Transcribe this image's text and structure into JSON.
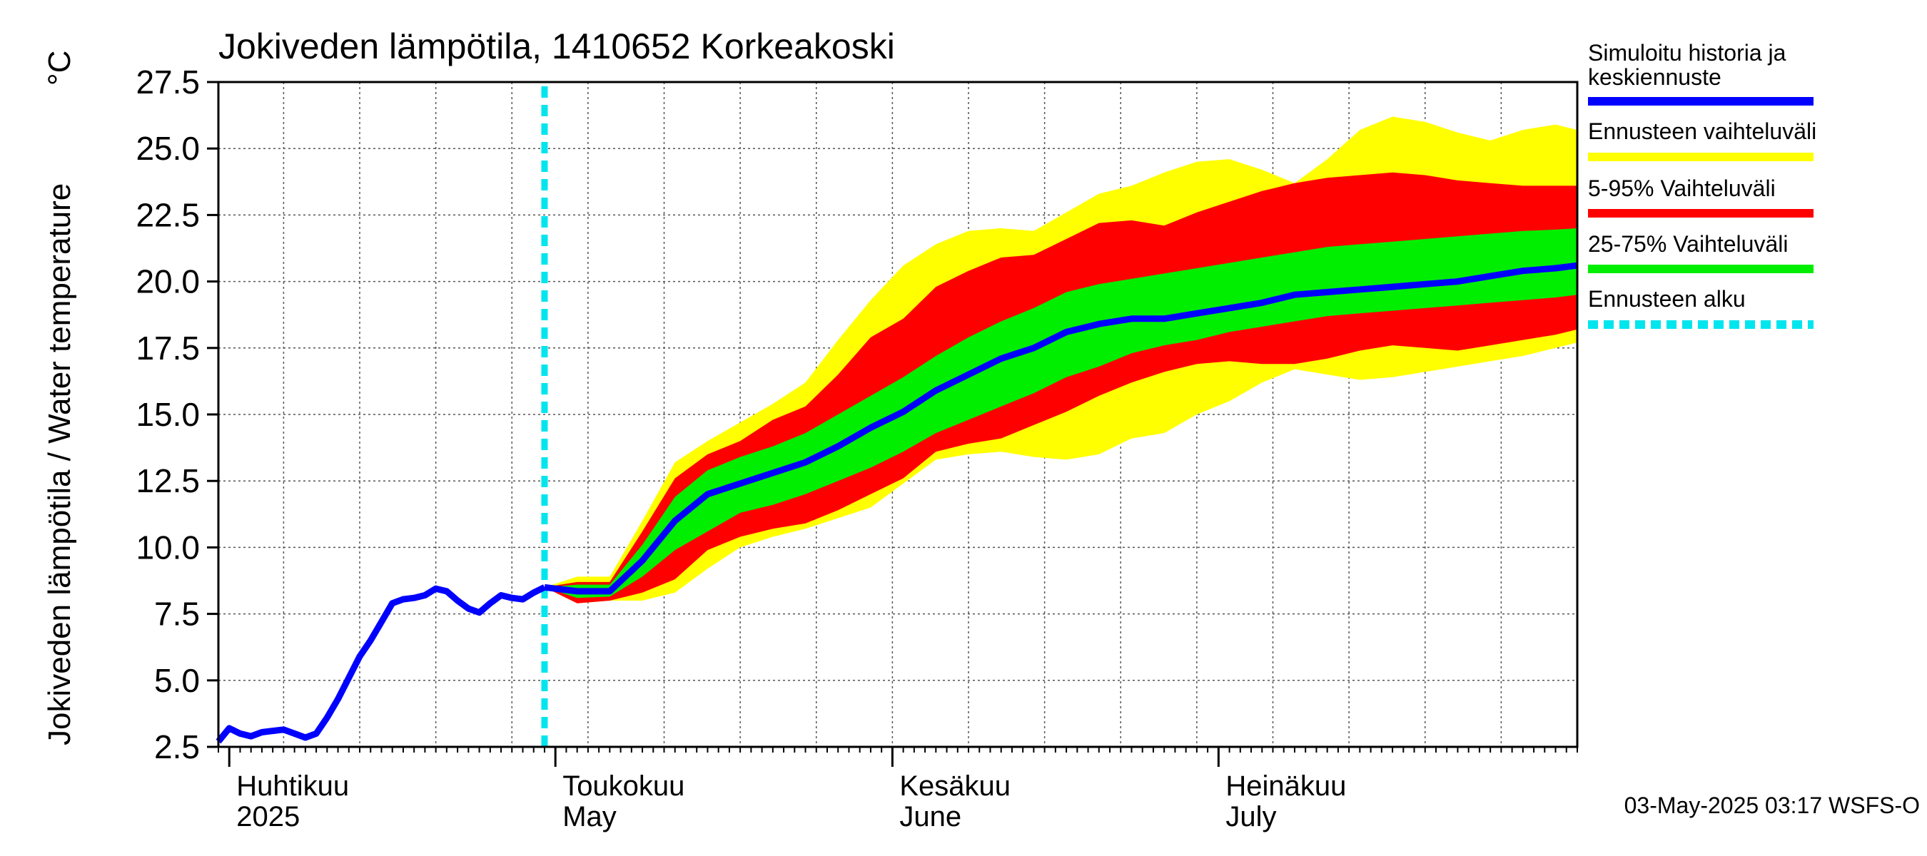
{
  "chart_data": {
    "type": "area",
    "title": "Jokiveden lämpötila, 1410652 Korkeakoski",
    "ylabel": "Jokiveden lämpötila / Water temperature",
    "yunit": "°C",
    "ylim": [
      2.5,
      27.5
    ],
    "yticks": [
      "2.5",
      "5.0",
      "7.5",
      "10.0",
      "12.5",
      "15.0",
      "17.5",
      "20.0",
      "22.5",
      "25.0",
      "27.5"
    ],
    "xlim": [
      "2025-03-31",
      "2025-08-03"
    ],
    "grid": true,
    "months": [
      {
        "date": "2025-04-01",
        "fi": "Huhtikuu",
        "en": "2025"
      },
      {
        "date": "2025-05-01",
        "fi": "Toukokuu",
        "en": "May"
      },
      {
        "date": "2025-06-01",
        "fi": "Kesäkuu",
        "en": "June"
      },
      {
        "date": "2025-07-01",
        "fi": "Heinäkuu",
        "en": "July"
      }
    ],
    "forecast_start": "2025-04-30",
    "footer": "03-May-2025 03:17 WSFS-O",
    "legend_position": "right",
    "legend": [
      {
        "label": "Simuloitu historia ja keskiennuste",
        "color": "#0000ff"
      },
      {
        "label": "Ennusteen vaihteluväli",
        "color": "#ffff00"
      },
      {
        "label": "5-95% Vaihteluväli",
        "color": "#ff0000"
      },
      {
        "label": "25-75% Vaihteluväli",
        "color": "#00ee00"
      },
      {
        "label": "Ennusteen alku",
        "color": "#00e5ee"
      }
    ],
    "colors": {
      "median": "#0000ff",
      "full_range": "#ffff00",
      "p5_95": "#ff0000",
      "p25_75": "#00ee00",
      "start": "#00e5ee"
    },
    "history": {
      "x": [
        "2025-03-31",
        "2025-04-01",
        "2025-04-02",
        "2025-04-03",
        "2025-04-04",
        "2025-04-05",
        "2025-04-06",
        "2025-04-07",
        "2025-04-08",
        "2025-04-09",
        "2025-04-10",
        "2025-04-11",
        "2025-04-12",
        "2025-04-13",
        "2025-04-14",
        "2025-04-15",
        "2025-04-16",
        "2025-04-17",
        "2025-04-18",
        "2025-04-19",
        "2025-04-20",
        "2025-04-21",
        "2025-04-22",
        "2025-04-23",
        "2025-04-24",
        "2025-04-25",
        "2025-04-26",
        "2025-04-27",
        "2025-04-28",
        "2025-04-29",
        "2025-04-30"
      ],
      "y": [
        2.7,
        3.2,
        3.0,
        2.9,
        3.05,
        3.1,
        3.15,
        3.0,
        2.85,
        3.0,
        3.6,
        4.3,
        5.1,
        5.9,
        6.5,
        7.2,
        7.9,
        8.05,
        8.1,
        8.2,
        8.45,
        8.35,
        8.0,
        7.7,
        7.55,
        7.9,
        8.2,
        8.1,
        8.05,
        8.3,
        8.5
      ]
    },
    "forecast": {
      "x": [
        "2025-04-30",
        "2025-05-03",
        "2025-05-06",
        "2025-05-09",
        "2025-05-12",
        "2025-05-15",
        "2025-05-18",
        "2025-05-21",
        "2025-05-24",
        "2025-05-27",
        "2025-05-30",
        "2025-06-02",
        "2025-06-05",
        "2025-06-08",
        "2025-06-11",
        "2025-06-14",
        "2025-06-17",
        "2025-06-20",
        "2025-06-23",
        "2025-06-26",
        "2025-06-29",
        "2025-07-02",
        "2025-07-05",
        "2025-07-08",
        "2025-07-11",
        "2025-07-14",
        "2025-07-17",
        "2025-07-20",
        "2025-07-23",
        "2025-07-26",
        "2025-07-29",
        "2025-08-01",
        "2025-08-03"
      ],
      "median": [
        8.5,
        8.35,
        8.35,
        9.5,
        11.0,
        12.0,
        12.4,
        12.8,
        13.2,
        13.8,
        14.5,
        15.1,
        15.9,
        16.5,
        17.1,
        17.5,
        18.1,
        18.4,
        18.6,
        18.6,
        18.8,
        19.0,
        19.2,
        19.5,
        19.6,
        19.7,
        19.8,
        19.9,
        20.0,
        20.2,
        20.4,
        20.5,
        20.6
      ],
      "p25": [
        8.5,
        8.1,
        8.15,
        8.9,
        9.9,
        10.6,
        11.3,
        11.6,
        12.0,
        12.5,
        13.0,
        13.6,
        14.3,
        14.8,
        15.3,
        15.8,
        16.4,
        16.8,
        17.3,
        17.6,
        17.8,
        18.1,
        18.3,
        18.5,
        18.7,
        18.8,
        18.9,
        19.0,
        19.1,
        19.2,
        19.3,
        19.4,
        19.5
      ],
      "p75": [
        8.5,
        8.6,
        8.6,
        10.1,
        11.9,
        12.9,
        13.4,
        13.8,
        14.3,
        15.0,
        15.7,
        16.4,
        17.2,
        17.9,
        18.5,
        19.0,
        19.6,
        19.9,
        20.1,
        20.3,
        20.5,
        20.7,
        20.9,
        21.1,
        21.3,
        21.4,
        21.5,
        21.6,
        21.7,
        21.8,
        21.9,
        21.95,
        22.0
      ],
      "p5": [
        8.5,
        7.9,
        8.0,
        8.3,
        8.8,
        9.9,
        10.4,
        10.7,
        10.9,
        11.4,
        12.0,
        12.6,
        13.6,
        13.9,
        14.1,
        14.6,
        15.1,
        15.7,
        16.2,
        16.6,
        16.9,
        17.0,
        16.9,
        16.9,
        17.1,
        17.4,
        17.6,
        17.5,
        17.4,
        17.6,
        17.8,
        18.0,
        18.2
      ],
      "p95": [
        8.5,
        8.7,
        8.7,
        10.6,
        12.6,
        13.5,
        14.0,
        14.8,
        15.3,
        16.5,
        17.9,
        18.6,
        19.8,
        20.4,
        20.9,
        21.0,
        21.6,
        22.2,
        22.3,
        22.1,
        22.6,
        23.0,
        23.4,
        23.7,
        23.9,
        24.0,
        24.1,
        24.0,
        23.8,
        23.7,
        23.6,
        23.6,
        23.6
      ],
      "min": [
        8.5,
        7.9,
        8.0,
        8.0,
        8.3,
        9.2,
        10.0,
        10.4,
        10.7,
        11.1,
        11.5,
        12.4,
        13.3,
        13.5,
        13.6,
        13.4,
        13.3,
        13.5,
        14.1,
        14.3,
        15.0,
        15.5,
        16.2,
        16.7,
        16.5,
        16.3,
        16.4,
        16.6,
        16.8,
        17.0,
        17.2,
        17.5,
        17.7
      ],
      "max": [
        8.5,
        8.9,
        8.9,
        11.0,
        13.2,
        14.0,
        14.7,
        15.4,
        16.2,
        17.8,
        19.3,
        20.6,
        21.4,
        21.9,
        22.0,
        21.9,
        22.6,
        23.3,
        23.6,
        24.1,
        24.5,
        24.6,
        24.2,
        23.7,
        24.6,
        25.7,
        26.2,
        26.0,
        25.6,
        25.3,
        25.7,
        25.9,
        25.7
      ]
    }
  }
}
